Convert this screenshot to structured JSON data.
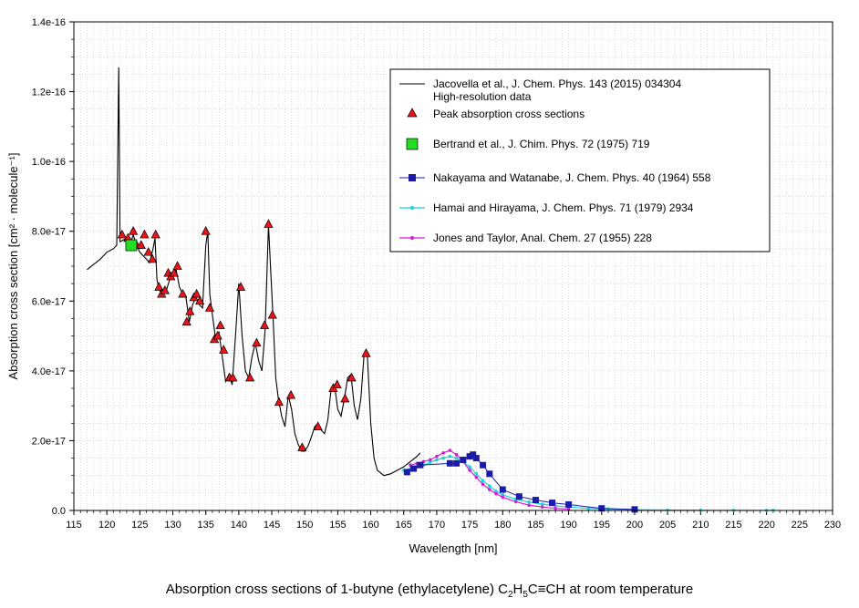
{
  "caption": {
    "prefix": "Absorption cross sections of  1-butyne (ethylacetylene) C",
    "sub1": "2",
    "mid1": "H",
    "sub2": "5",
    "suffix": "C≡CH at room temperature"
  },
  "chart_data": {
    "type": "line",
    "xlabel": "Wavelength [nm]",
    "ylabel": "Absorption cross section [cm² · molecule⁻¹]",
    "xlim": [
      115,
      230
    ],
    "ylim": [
      0,
      1.4e-16
    ],
    "xticks": [
      "115",
      "120",
      "125",
      "130",
      "135",
      "140",
      "145",
      "150",
      "155",
      "160",
      "165",
      "170",
      "175",
      "180",
      "185",
      "190",
      "195",
      "200",
      "205",
      "210",
      "215",
      "220",
      "225",
      "230"
    ],
    "yticks": [
      "0.0",
      "2.0e-17",
      "4.0e-17",
      "6.0e-17",
      "8.0e-17",
      "1.0e-16",
      "1.2e-16",
      "1.4e-16"
    ],
    "grid": true,
    "legend_position": "top-right",
    "colors": {
      "jacovella": "#000000",
      "peak": "#e8161b",
      "bertrand": "#22dd22",
      "nakayama": "#1b1ba8",
      "hamai": "#17d4d4",
      "jones": "#d81bd8"
    },
    "series": [
      {
        "name": "Jacovella et al., J. Chem. Phys. 143 (2015) 034304",
        "name_line2": "High-resolution data",
        "style": "line",
        "x": [
          117,
          118,
          119,
          120,
          121,
          121.5,
          121.8,
          122,
          122.5,
          123,
          123.5,
          124,
          124.5,
          125,
          125.5,
          126,
          126.5,
          127,
          127.3,
          127.6,
          128,
          128.5,
          129,
          129.5,
          130,
          130.5,
          131,
          131.5,
          132,
          132.5,
          133,
          133.5,
          134,
          134.5,
          135,
          135.3,
          135.6,
          136,
          136.5,
          137,
          137.5,
          138,
          138.5,
          139,
          139.5,
          140,
          140.5,
          141,
          141.5,
          142,
          142.5,
          143,
          143.5,
          144,
          144.5,
          144.8,
          145.2,
          145.6,
          146,
          146.5,
          147,
          147.5,
          148,
          148.5,
          149,
          149.5,
          150,
          150.5,
          151,
          151.5,
          152,
          152.5,
          153,
          153.5,
          154,
          154.5,
          155,
          155.5,
          156,
          156.5,
          157,
          157.5,
          158,
          158.5,
          159,
          159.5,
          160,
          160.5,
          161,
          162,
          163,
          164,
          165,
          166,
          167,
          167.5
        ],
        "y": [
          6.9e-17,
          7.05e-17,
          7.2e-17,
          7.4e-17,
          7.5e-17,
          7.6e-17,
          1.27e-16,
          7.7e-17,
          7.75e-17,
          7.8e-17,
          7.6e-17,
          7.9e-17,
          7.6e-17,
          7.4e-17,
          7.3e-17,
          7.2e-17,
          7.1e-17,
          7.5e-17,
          7.8e-17,
          6.6e-17,
          6.3e-17,
          6.2e-17,
          6.3e-17,
          6.6e-17,
          6.8e-17,
          6.9e-17,
          6.4e-17,
          6.2e-17,
          6.1e-17,
          5.4e-17,
          5.9e-17,
          6.1e-17,
          5.9e-17,
          5.8e-17,
          7.6e-17,
          8e-17,
          6.2e-17,
          5.6e-17,
          4.9e-17,
          5.1e-17,
          4.4e-17,
          3.7e-17,
          3.9e-17,
          3.6e-17,
          5e-17,
          6.5e-17,
          5e-17,
          4e-17,
          3.8e-17,
          4.4e-17,
          4.8e-17,
          4.3e-17,
          4e-17,
          5.2e-17,
          8.2e-17,
          7e-17,
          5.5e-17,
          3.8e-17,
          3.2e-17,
          2.7e-17,
          2.4e-17,
          3.3e-17,
          2.9e-17,
          2.2e-17,
          1.9e-17,
          1.7e-17,
          1.7e-17,
          1.85e-17,
          2.1e-17,
          2.4e-17,
          2.5e-17,
          2.3e-17,
          2.2e-17,
          2.6e-17,
          3.5e-17,
          3.6e-17,
          2.9e-17,
          2.7e-17,
          3.2e-17,
          3.8e-17,
          3.9e-17,
          3e-17,
          2.6e-17,
          3.2e-17,
          4.5e-17,
          4.4e-17,
          2.5e-17,
          1.5e-17,
          1.15e-17,
          1e-17,
          1.05e-17,
          1.15e-17,
          1.25e-17,
          1.4e-17,
          1.55e-17,
          1.65e-17
        ]
      },
      {
        "name": "Peak absorption cross sections",
        "style": "triangle",
        "x": [
          122.3,
          123.2,
          124,
          124.5,
          125.2,
          125.7,
          126.3,
          126.9,
          127.4,
          127.9,
          128.3,
          128.8,
          129.3,
          129.7,
          130.2,
          130.7,
          131.5,
          132.1,
          132.6,
          133.2,
          133.6,
          134.1,
          135,
          135.6,
          136.3,
          136.8,
          137.2,
          137.7,
          138.6,
          139.1,
          140.3,
          141.7,
          142.7,
          143.9,
          144.5,
          145.1,
          146.1,
          147.9,
          149.6,
          152,
          154.3,
          154.9,
          156.1,
          157.1,
          159.3
        ],
        "y": [
          7.9e-17,
          7.8e-17,
          8e-17,
          7.6e-17,
          7.6e-17,
          7.9e-17,
          7.4e-17,
          7.2e-17,
          7.9e-17,
          6.4e-17,
          6.2e-17,
          6.3e-17,
          6.8e-17,
          6.7e-17,
          6.8e-17,
          7e-17,
          6.2e-17,
          5.4e-17,
          5.7e-17,
          6.1e-17,
          6.2e-17,
          6e-17,
          8e-17,
          5.8e-17,
          4.9e-17,
          5e-17,
          5.3e-17,
          4.6e-17,
          3.8e-17,
          3.8e-17,
          6.4e-17,
          3.8e-17,
          4.8e-17,
          5.3e-17,
          8.2e-17,
          5.6e-17,
          3.1e-17,
          3.3e-17,
          1.8e-17,
          2.4e-17,
          3.5e-17,
          3.6e-17,
          3.2e-17,
          3.8e-17,
          4.5e-17
        ]
      },
      {
        "name": "Bertrand et al., J. Chim. Phys. 72 (1975) 719",
        "style": "square-green",
        "x": [
          123.7
        ],
        "y": [
          7.6e-17
        ]
      },
      {
        "name": "Nakayama and Watanabe, J. Chem. Phys. 40 (1964) 558",
        "style": "line-square",
        "x": [
          165.5,
          166.5,
          167.5,
          172,
          173,
          174,
          175,
          175.5,
          176,
          177,
          178,
          180,
          182.5,
          185,
          187.5,
          190,
          195,
          200
        ],
        "y": [
          1.1e-17,
          1.2e-17,
          1.3e-17,
          1.35e-17,
          1.35e-17,
          1.45e-17,
          1.55e-17,
          1.6e-17,
          1.5e-17,
          1.3e-17,
          1.05e-17,
          6e-18,
          4e-18,
          3e-18,
          2.2e-18,
          1.7e-18,
          6e-19,
          3e-19
        ]
      },
      {
        "name": "Hamai and Hirayama, J. Chem. Phys. 71 (1979) 2934",
        "style": "line-dot",
        "x": [
          165,
          166,
          167,
          168,
          169,
          170,
          171,
          172,
          173,
          174,
          175,
          176,
          177,
          178,
          179,
          180,
          182,
          184,
          186,
          188,
          190,
          193,
          196,
          200,
          205,
          210,
          215,
          220,
          221
        ],
        "y": [
          1.15e-17,
          1.2e-17,
          1.25e-17,
          1.3e-17,
          1.38e-17,
          1.45e-17,
          1.5e-17,
          1.55e-17,
          1.5e-17,
          1.4e-17,
          1.25e-17,
          1.05e-17,
          8.5e-18,
          7e-18,
          5.5e-18,
          4.5e-18,
          3.2e-18,
          2.4e-18,
          1.8e-18,
          1.3e-18,
          1e-18,
          6e-19,
          4e-19,
          2e-19,
          1e-19,
          5e-20,
          3e-20,
          2e-20,
          2e-20
        ]
      },
      {
        "name": "Jones and Taylor, Anal. Chem. 27 (1955) 228",
        "style": "line-dot",
        "x": [
          166,
          167,
          168,
          169,
          170,
          171,
          172,
          173,
          174,
          175,
          176,
          177,
          178,
          179,
          180,
          182,
          184,
          186,
          188,
          190
        ],
        "y": [
          1.3e-17,
          1.35e-17,
          1.4e-17,
          1.45e-17,
          1.55e-17,
          1.65e-17,
          1.72e-17,
          1.6e-17,
          1.4e-17,
          1.15e-17,
          9.5e-18,
          7.5e-18,
          6e-18,
          4.8e-18,
          3.8e-18,
          2.5e-18,
          1.5e-18,
          1e-18,
          6e-19,
          4e-19
        ]
      }
    ]
  }
}
